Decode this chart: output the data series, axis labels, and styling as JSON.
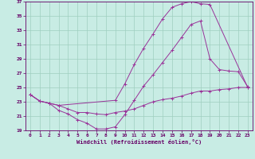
{
  "xlabel": "Windchill (Refroidissement éolien,°C)",
  "bg_color": "#c8ece4",
  "grid_color": "#9fcfbf",
  "line_color": "#993399",
  "tick_color": "#660066",
  "xlim_min": -0.5,
  "xlim_max": 23.5,
  "ylim_min": 19,
  "ylim_max": 37,
  "yticks": [
    19,
    21,
    23,
    25,
    27,
    29,
    31,
    33,
    35,
    37
  ],
  "xticks": [
    0,
    1,
    2,
    3,
    4,
    5,
    6,
    7,
    8,
    9,
    10,
    11,
    12,
    13,
    14,
    15,
    16,
    17,
    18,
    19,
    20,
    21,
    22,
    23
  ],
  "line1_x": [
    0,
    1,
    2,
    3,
    9,
    10,
    11,
    12,
    13,
    14,
    15,
    16,
    17,
    18,
    19,
    23
  ],
  "line1_y": [
    24.0,
    23.1,
    22.8,
    22.5,
    23.2,
    25.5,
    28.2,
    30.5,
    32.5,
    34.6,
    36.2,
    36.7,
    37.0,
    36.7,
    36.6,
    25.0
  ],
  "line2_x": [
    0,
    1,
    2,
    3,
    4,
    5,
    6,
    7,
    8,
    9,
    10,
    11,
    12,
    13,
    14,
    15,
    16,
    17,
    18,
    19,
    20,
    21,
    22,
    23
  ],
  "line2_y": [
    24.0,
    23.1,
    22.8,
    21.8,
    21.3,
    20.5,
    20.0,
    19.2,
    19.2,
    19.5,
    21.2,
    23.2,
    25.2,
    26.8,
    28.5,
    30.2,
    32.0,
    33.8,
    34.3,
    29.0,
    27.5,
    27.3,
    27.2,
    25.1
  ],
  "line3_x": [
    0,
    1,
    2,
    3,
    4,
    5,
    6,
    7,
    8,
    9,
    10,
    11,
    12,
    13,
    14,
    15,
    16,
    17,
    18,
    19,
    20,
    21,
    22,
    23
  ],
  "line3_y": [
    24.0,
    23.1,
    22.8,
    22.5,
    22.0,
    21.5,
    21.5,
    21.3,
    21.2,
    21.5,
    21.7,
    22.0,
    22.5,
    23.0,
    23.3,
    23.5,
    23.8,
    24.2,
    24.5,
    24.5,
    24.7,
    24.8,
    25.0,
    25.0
  ]
}
